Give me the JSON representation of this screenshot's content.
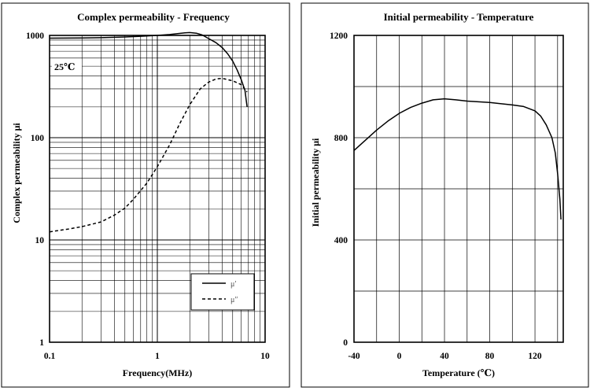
{
  "chart_data": [
    {
      "type": "line",
      "title": "Complex permeability - Frequency",
      "xlabel": "Frequency(MHz)",
      "ylabel": "Complex permeability μi",
      "x_scale": "log",
      "y_scale": "log",
      "xlim": [
        0.1,
        10
      ],
      "ylim": [
        1,
        1000
      ],
      "x_ticks": [
        "0.1",
        "1",
        "10"
      ],
      "y_ticks": [
        "1",
        "10",
        "100",
        "1000"
      ],
      "grid": true,
      "legend_position": "bottom-right",
      "annotation": "25℃",
      "series": [
        {
          "name": "μ′",
          "style": "solid",
          "x": [
            0.1,
            0.2,
            0.3,
            0.5,
            0.7,
            1.0,
            1.3,
            1.6,
            1.8,
            2.0,
            2.3,
            2.6,
            3.0,
            3.5,
            4.0,
            4.5,
            5.0,
            5.5,
            6.0,
            6.5,
            6.8
          ],
          "y": [
            940,
            945,
            950,
            965,
            980,
            1000,
            1020,
            1045,
            1060,
            1065,
            1050,
            1010,
            930,
            850,
            760,
            660,
            560,
            460,
            370,
            290,
            200
          ]
        },
        {
          "name": "μ″",
          "style": "dashed",
          "x": [
            0.1,
            0.15,
            0.2,
            0.3,
            0.4,
            0.5,
            0.6,
            0.8,
            1.0,
            1.3,
            1.6,
            2.0,
            2.5,
            3.0,
            3.5,
            4.0,
            5.0,
            6.0,
            6.8
          ],
          "y": [
            12,
            12.8,
            13.5,
            15,
            17.5,
            20.5,
            25,
            36,
            52,
            85,
            135,
            210,
            300,
            350,
            375,
            380,
            360,
            330,
            280
          ]
        }
      ]
    },
    {
      "type": "line",
      "title": "Initial permeability - Temperature",
      "xlabel": "Temperature (℃)",
      "ylabel": "Initial permeability μi",
      "xlim": [
        -40,
        145
      ],
      "ylim": [
        0,
        1200
      ],
      "x_ticks": [
        "-40",
        "0",
        "40",
        "80",
        "120"
      ],
      "y_ticks": [
        "0",
        "400",
        "800",
        "1200"
      ],
      "grid": true,
      "series": [
        {
          "name": "",
          "style": "solid",
          "x": [
            -40,
            -30,
            -20,
            -10,
            0,
            10,
            20,
            30,
            40,
            50,
            60,
            80,
            100,
            110,
            120,
            125,
            130,
            135,
            138,
            140,
            142,
            143
          ],
          "y": [
            750,
            790,
            830,
            865,
            895,
            918,
            935,
            948,
            952,
            948,
            943,
            938,
            928,
            922,
            905,
            885,
            850,
            800,
            740,
            660,
            560,
            480
          ]
        }
      ]
    }
  ]
}
